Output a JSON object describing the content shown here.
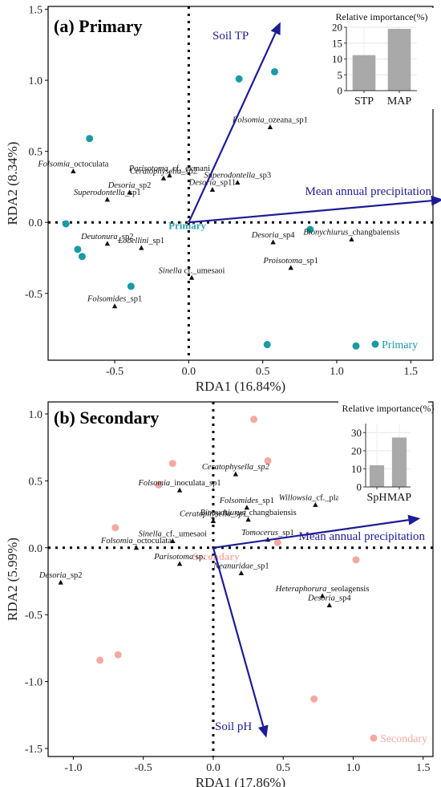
{
  "chart_data": [
    {
      "type": "scatter",
      "panel_title": "(a) Primary",
      "xlabel": "RDA1 (16.84%)",
      "ylabel": "RDA2 (8.34%)",
      "xlim": [
        -0.95,
        1.65
      ],
      "ylim": [
        -0.97,
        1.52
      ],
      "xticks": [
        "-0.5",
        "0.0",
        "0.5",
        "1.0",
        "1.5"
      ],
      "xtick_values": [
        -0.5,
        0,
        0.5,
        1.0,
        1.5
      ],
      "yticks": [
        "-0.5",
        "0.0",
        "0.5",
        "1.0",
        "1.5"
      ],
      "ytick_values": [
        -0.5,
        0,
        0.5,
        1.0,
        1.5
      ],
      "point_color": "#1a9aa6",
      "arrow_color": "#1c1c96",
      "centroid_label": "Primary",
      "centroid": [
        -0.01,
        -0.02
      ],
      "legend_label": "Primary",
      "sites": [
        [
          -0.67,
          0.59
        ],
        [
          -0.83,
          -0.01
        ],
        [
          -0.75,
          -0.19
        ],
        [
          -0.72,
          -0.24
        ],
        [
          -0.39,
          -0.45
        ],
        [
          0.34,
          1.01
        ],
        [
          0.58,
          1.06
        ],
        [
          0.82,
          -0.05
        ],
        [
          0.53,
          -0.86
        ],
        [
          1.13,
          -0.87
        ]
      ],
      "arrows": [
        {
          "label": "Soil TP",
          "x": 0.62,
          "y": 1.41
        },
        {
          "label": "Mean annual precipitation",
          "x": 1.72,
          "y": 0.16
        }
      ],
      "species": [
        {
          "genus": "Folsomia",
          "rest": "_ozeana_sp1",
          "x": 0.55,
          "y": 0.67,
          "italic_all": false
        },
        {
          "genus": "Folsomia",
          "rest": "_octoculata",
          "x": -0.78,
          "y": 0.36,
          "italic_all": false
        },
        {
          "genus": "Parisotoma",
          "rest": "_cf._ekmani",
          "x": -0.13,
          "y": 0.33,
          "italic_all": false
        },
        {
          "genus": "Ceratophysella",
          "rest": "_sp2",
          "x": -0.17,
          "y": 0.31,
          "italic_all": false
        },
        {
          "genus": "Superodontella",
          "rest": "_sp3",
          "x": 0.33,
          "y": 0.28,
          "italic_all": false
        },
        {
          "genus": "Desoria",
          "rest": "_sp2",
          "x": -0.4,
          "y": 0.21,
          "italic_all": false
        },
        {
          "genus": "Desoria",
          "rest": "_sp11",
          "x": 0.16,
          "y": 0.23,
          "italic_all": false
        },
        {
          "genus": "Superodontella",
          "rest": "_sp1",
          "x": -0.55,
          "y": 0.16,
          "italic_all": false
        },
        {
          "genus": "Deutonura",
          "rest": "_sp2",
          "x": -0.55,
          "y": -0.15,
          "italic_all": false
        },
        {
          "genus": "Lobellini",
          "rest": "_sp1",
          "x": -0.32,
          "y": -0.18,
          "italic_all": false
        },
        {
          "genus": "Desoria",
          "rest": "_sp4",
          "x": 0.57,
          "y": -0.14,
          "italic_all": false
        },
        {
          "genus": "Bionychiurus",
          "rest": "_changbaiensis",
          "x": 1.1,
          "y": -0.12,
          "italic_all": false
        },
        {
          "genus": "Sinella",
          "rest": " cf._umesaoi",
          "x": 0.02,
          "y": -0.39,
          "italic_all": false
        },
        {
          "genus": "Proisotoma",
          "rest": "_sp1",
          "x": 0.69,
          "y": -0.32,
          "italic_all": false
        },
        {
          "genus": "Folsomides",
          "rest": "_sp1",
          "x": -0.5,
          "y": -0.59,
          "italic_all": false
        }
      ],
      "inset": {
        "title": "Relative importance(%)",
        "categories": [
          "STP",
          "MAP"
        ],
        "values": [
          11.2,
          19.5
        ],
        "ylim": [
          0,
          20
        ],
        "yticks": [
          "0",
          "5",
          "10",
          "15",
          "20"
        ],
        "ytick_values": [
          0,
          5,
          10,
          15,
          20
        ],
        "bar_color": "#a9a9a9"
      }
    },
    {
      "type": "scatter",
      "panel_title": "(b) Secondary",
      "xlabel": "RDA1 (17.86%)",
      "ylabel": "RDA2 (5.99%)",
      "xlim": [
        -1.18,
        1.57
      ],
      "ylim": [
        -1.56,
        1.09
      ],
      "xticks": [
        "-1.0",
        "-0.5",
        "0.0",
        "0.5",
        "1.0",
        "1.5"
      ],
      "xtick_values": [
        -1.0,
        -0.5,
        0,
        0.5,
        1.0,
        1.5
      ],
      "yticks": [
        "-1.5",
        "-1.0",
        "-0.5",
        "0.0",
        "0.5",
        "1.0"
      ],
      "ytick_values": [
        -1.5,
        -1.0,
        -0.5,
        0,
        0.5,
        1.0
      ],
      "point_color": "#f4aaa3",
      "arrow_color": "#1c1c96",
      "centroid_label": "Secondary",
      "centroid": [
        0.02,
        -0.06
      ],
      "legend_label": "Secondary",
      "sites": [
        [
          0.29,
          0.96
        ],
        [
          -0.29,
          0.63
        ],
        [
          0.39,
          0.65
        ],
        [
          -0.39,
          0.47
        ],
        [
          -0.7,
          0.15
        ],
        [
          0.46,
          0.04
        ],
        [
          1.02,
          -0.09
        ],
        [
          -0.81,
          -0.84
        ],
        [
          -0.68,
          -0.8
        ],
        [
          0.72,
          -1.13
        ]
      ],
      "arrows": [
        {
          "label": "Soil pH",
          "x": 0.38,
          "y": -1.42
        },
        {
          "label": "Mean annual precipitation",
          "x": 1.48,
          "y": 0.22
        }
      ],
      "species": [
        {
          "genus": "Ceratophysella",
          "rest": "_sp2",
          "x": 0.16,
          "y": 0.55,
          "italic_all": true
        },
        {
          "genus": "Folsomia",
          "rest": "_inoculata_sp1",
          "x": -0.24,
          "y": 0.43,
          "italic_all": false
        },
        {
          "genus": "Folsomides",
          "rest": "_sp1",
          "x": 0.24,
          "y": 0.3,
          "italic_all": false
        },
        {
          "genus": "Willowsia",
          "rest": "_cf._platani",
          "x": 0.73,
          "y": 0.32,
          "italic_all": false
        },
        {
          "genus": "Ceratophysella",
          "rest": "_sp1",
          "x": 0.0,
          "y": 0.2,
          "italic_all": true
        },
        {
          "genus": "Bionychiurus",
          "rest": "_changbaiensis",
          "x": 0.25,
          "y": 0.21,
          "italic_all": false
        },
        {
          "genus": "Sinella",
          "rest": "_cf._umesaoi",
          "x": -0.29,
          "y": 0.05,
          "italic_all": false
        },
        {
          "genus": "Tomocerus",
          "rest": "_sp1",
          "x": 0.39,
          "y": 0.06,
          "italic_all": false
        },
        {
          "genus": "Folsomia",
          "rest": "_octoculata",
          "x": -0.55,
          "y": 0.0,
          "italic_all": false
        },
        {
          "genus": "Parisotoma",
          "rest": " sp.",
          "x": -0.24,
          "y": -0.12,
          "italic_all": false
        },
        {
          "genus": "Neanuridae",
          "rest": "_sp1",
          "x": 0.2,
          "y": -0.19,
          "italic_all": false
        },
        {
          "genus": "Desoria",
          "rest": "_sp2",
          "x": -1.09,
          "y": -0.26,
          "italic_all": false
        },
        {
          "genus": "Heteraphorura",
          "rest": "_seolagensis",
          "x": 0.78,
          "y": -0.36,
          "italic_all": false
        },
        {
          "genus": "Desoria",
          "rest": "_sp4",
          "x": 0.83,
          "y": -0.43,
          "italic_all": false
        }
      ],
      "inset": {
        "title": "Relative importance(%)",
        "categories": [
          "SpH",
          "MAP"
        ],
        "values": [
          12.0,
          27.3
        ],
        "ylim": [
          0,
          35
        ],
        "yticks": [
          "0",
          "10",
          "20",
          "30"
        ],
        "ytick_values": [
          0,
          10,
          20,
          30
        ],
        "bar_color": "#a9a9a9"
      }
    }
  ]
}
